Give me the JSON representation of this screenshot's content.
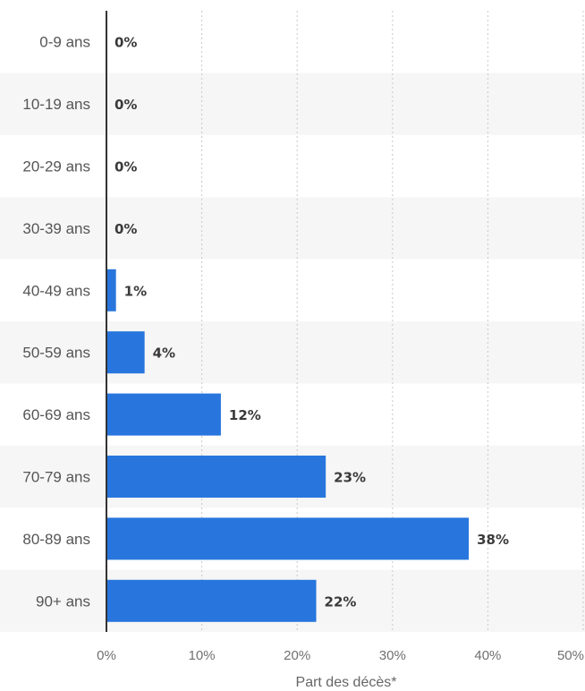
{
  "chart_data": {
    "type": "bar",
    "orientation": "horizontal",
    "categories": [
      "0-9 ans",
      "10-19 ans",
      "20-29 ans",
      "30-39 ans",
      "40-49 ans",
      "50-59 ans",
      "60-69 ans",
      "70-79 ans",
      "80-89 ans",
      "90+ ans"
    ],
    "values": [
      0,
      0,
      0,
      0,
      1,
      4,
      12,
      23,
      38,
      22
    ],
    "value_labels": [
      "0%",
      "0%",
      "0%",
      "0%",
      "1%",
      "4%",
      "12%",
      "23%",
      "38%",
      "22%"
    ],
    "xlabel": "Part des décès*",
    "ylabel": "",
    "xlim": [
      0,
      50
    ],
    "x_ticks": [
      "0%",
      "10%",
      "20%",
      "30%",
      "40%",
      "50%"
    ],
    "grid": "vertical dotted",
    "alternating_row_shading": true,
    "colors": {
      "bar": "#2876dd",
      "row_shade": "#f6f6f6",
      "grid": "#c8c8c8",
      "axis": "#333333"
    }
  }
}
